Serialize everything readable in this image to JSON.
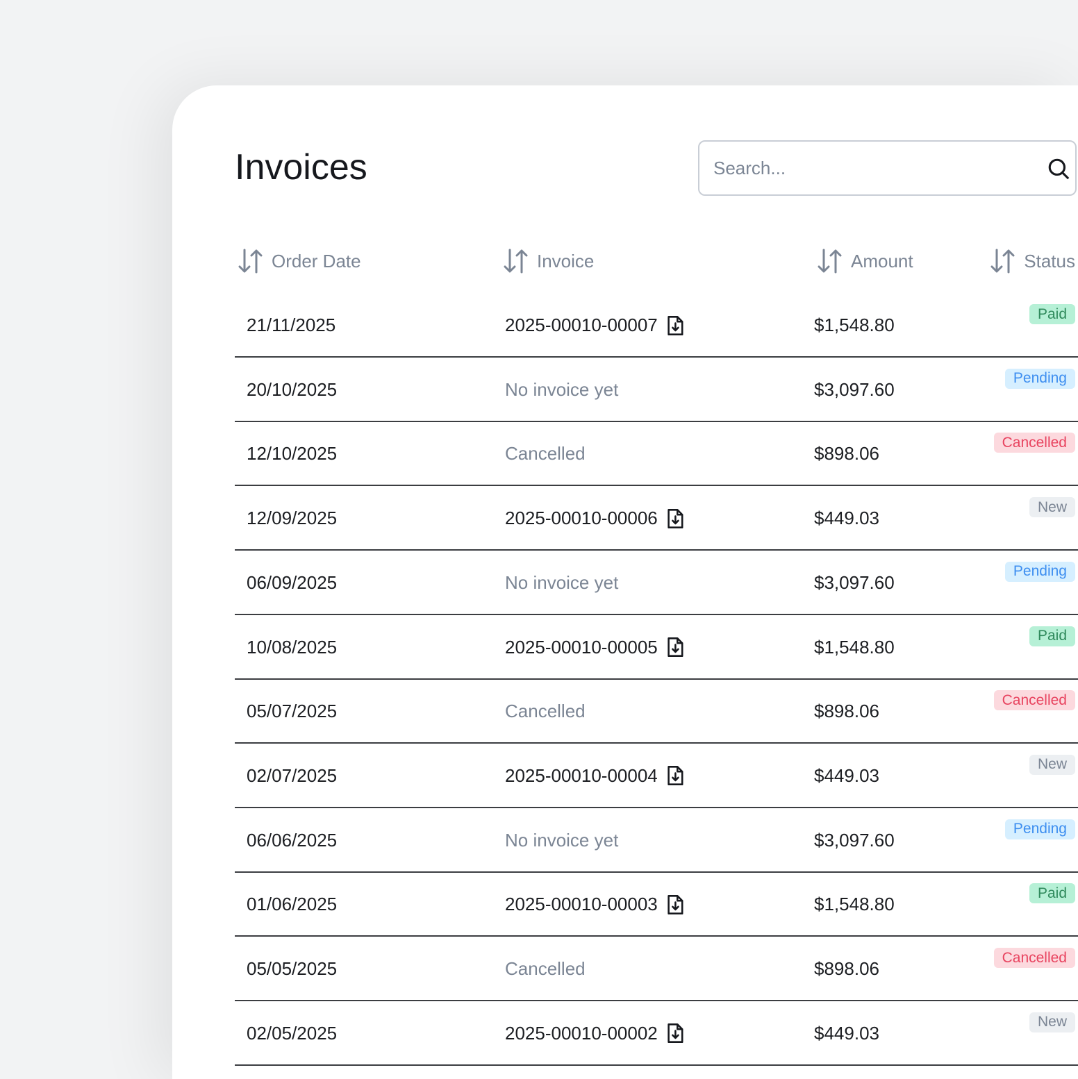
{
  "title": "Invoices",
  "search": {
    "placeholder": "Search..."
  },
  "columns": [
    "Order Date",
    "Invoice",
    "Amount",
    "Status"
  ],
  "status_colors": {
    "Paid": {
      "bg": "#b6f0d6",
      "fg": "#2f8a5c"
    },
    "Pending": {
      "bg": "#d6efff",
      "fg": "#3d8ef0"
    },
    "Cancelled": {
      "bg": "#fcd9de",
      "fg": "#e8435f"
    },
    "New": {
      "bg": "#eceff2",
      "fg": "#7b8594"
    }
  },
  "rows": [
    {
      "date": "21/11/2025",
      "invoice": "2025-00010-00007",
      "has_file": true,
      "amount": "$1,548.80",
      "status": "Paid"
    },
    {
      "date": "20/10/2025",
      "invoice": "No invoice yet",
      "has_file": false,
      "amount": "$3,097.60",
      "status": "Pending"
    },
    {
      "date": "12/10/2025",
      "invoice": "Cancelled",
      "has_file": false,
      "amount": "$898.06",
      "status": "Cancelled"
    },
    {
      "date": "12/09/2025",
      "invoice": "2025-00010-00006",
      "has_file": true,
      "amount": "$449.03",
      "status": "New"
    },
    {
      "date": "06/09/2025",
      "invoice": "No invoice yet",
      "has_file": false,
      "amount": "$3,097.60",
      "status": "Pending"
    },
    {
      "date": "10/08/2025",
      "invoice": "2025-00010-00005",
      "has_file": true,
      "amount": "$1,548.80",
      "status": "Paid"
    },
    {
      "date": "05/07/2025",
      "invoice": "Cancelled",
      "has_file": false,
      "amount": "$898.06",
      "status": "Cancelled"
    },
    {
      "date": "02/07/2025",
      "invoice": "2025-00010-00004",
      "has_file": true,
      "amount": "$449.03",
      "status": "New"
    },
    {
      "date": "06/06/2025",
      "invoice": "No invoice yet",
      "has_file": false,
      "amount": "$3,097.60",
      "status": "Pending"
    },
    {
      "date": "01/06/2025",
      "invoice": "2025-00010-00003",
      "has_file": true,
      "amount": "$1,548.80",
      "status": "Paid"
    },
    {
      "date": "05/05/2025",
      "invoice": "Cancelled",
      "has_file": false,
      "amount": "$898.06",
      "status": "Cancelled"
    },
    {
      "date": "02/05/2025",
      "invoice": "2025-00010-00002",
      "has_file": true,
      "amount": "$449.03",
      "status": "New"
    }
  ]
}
